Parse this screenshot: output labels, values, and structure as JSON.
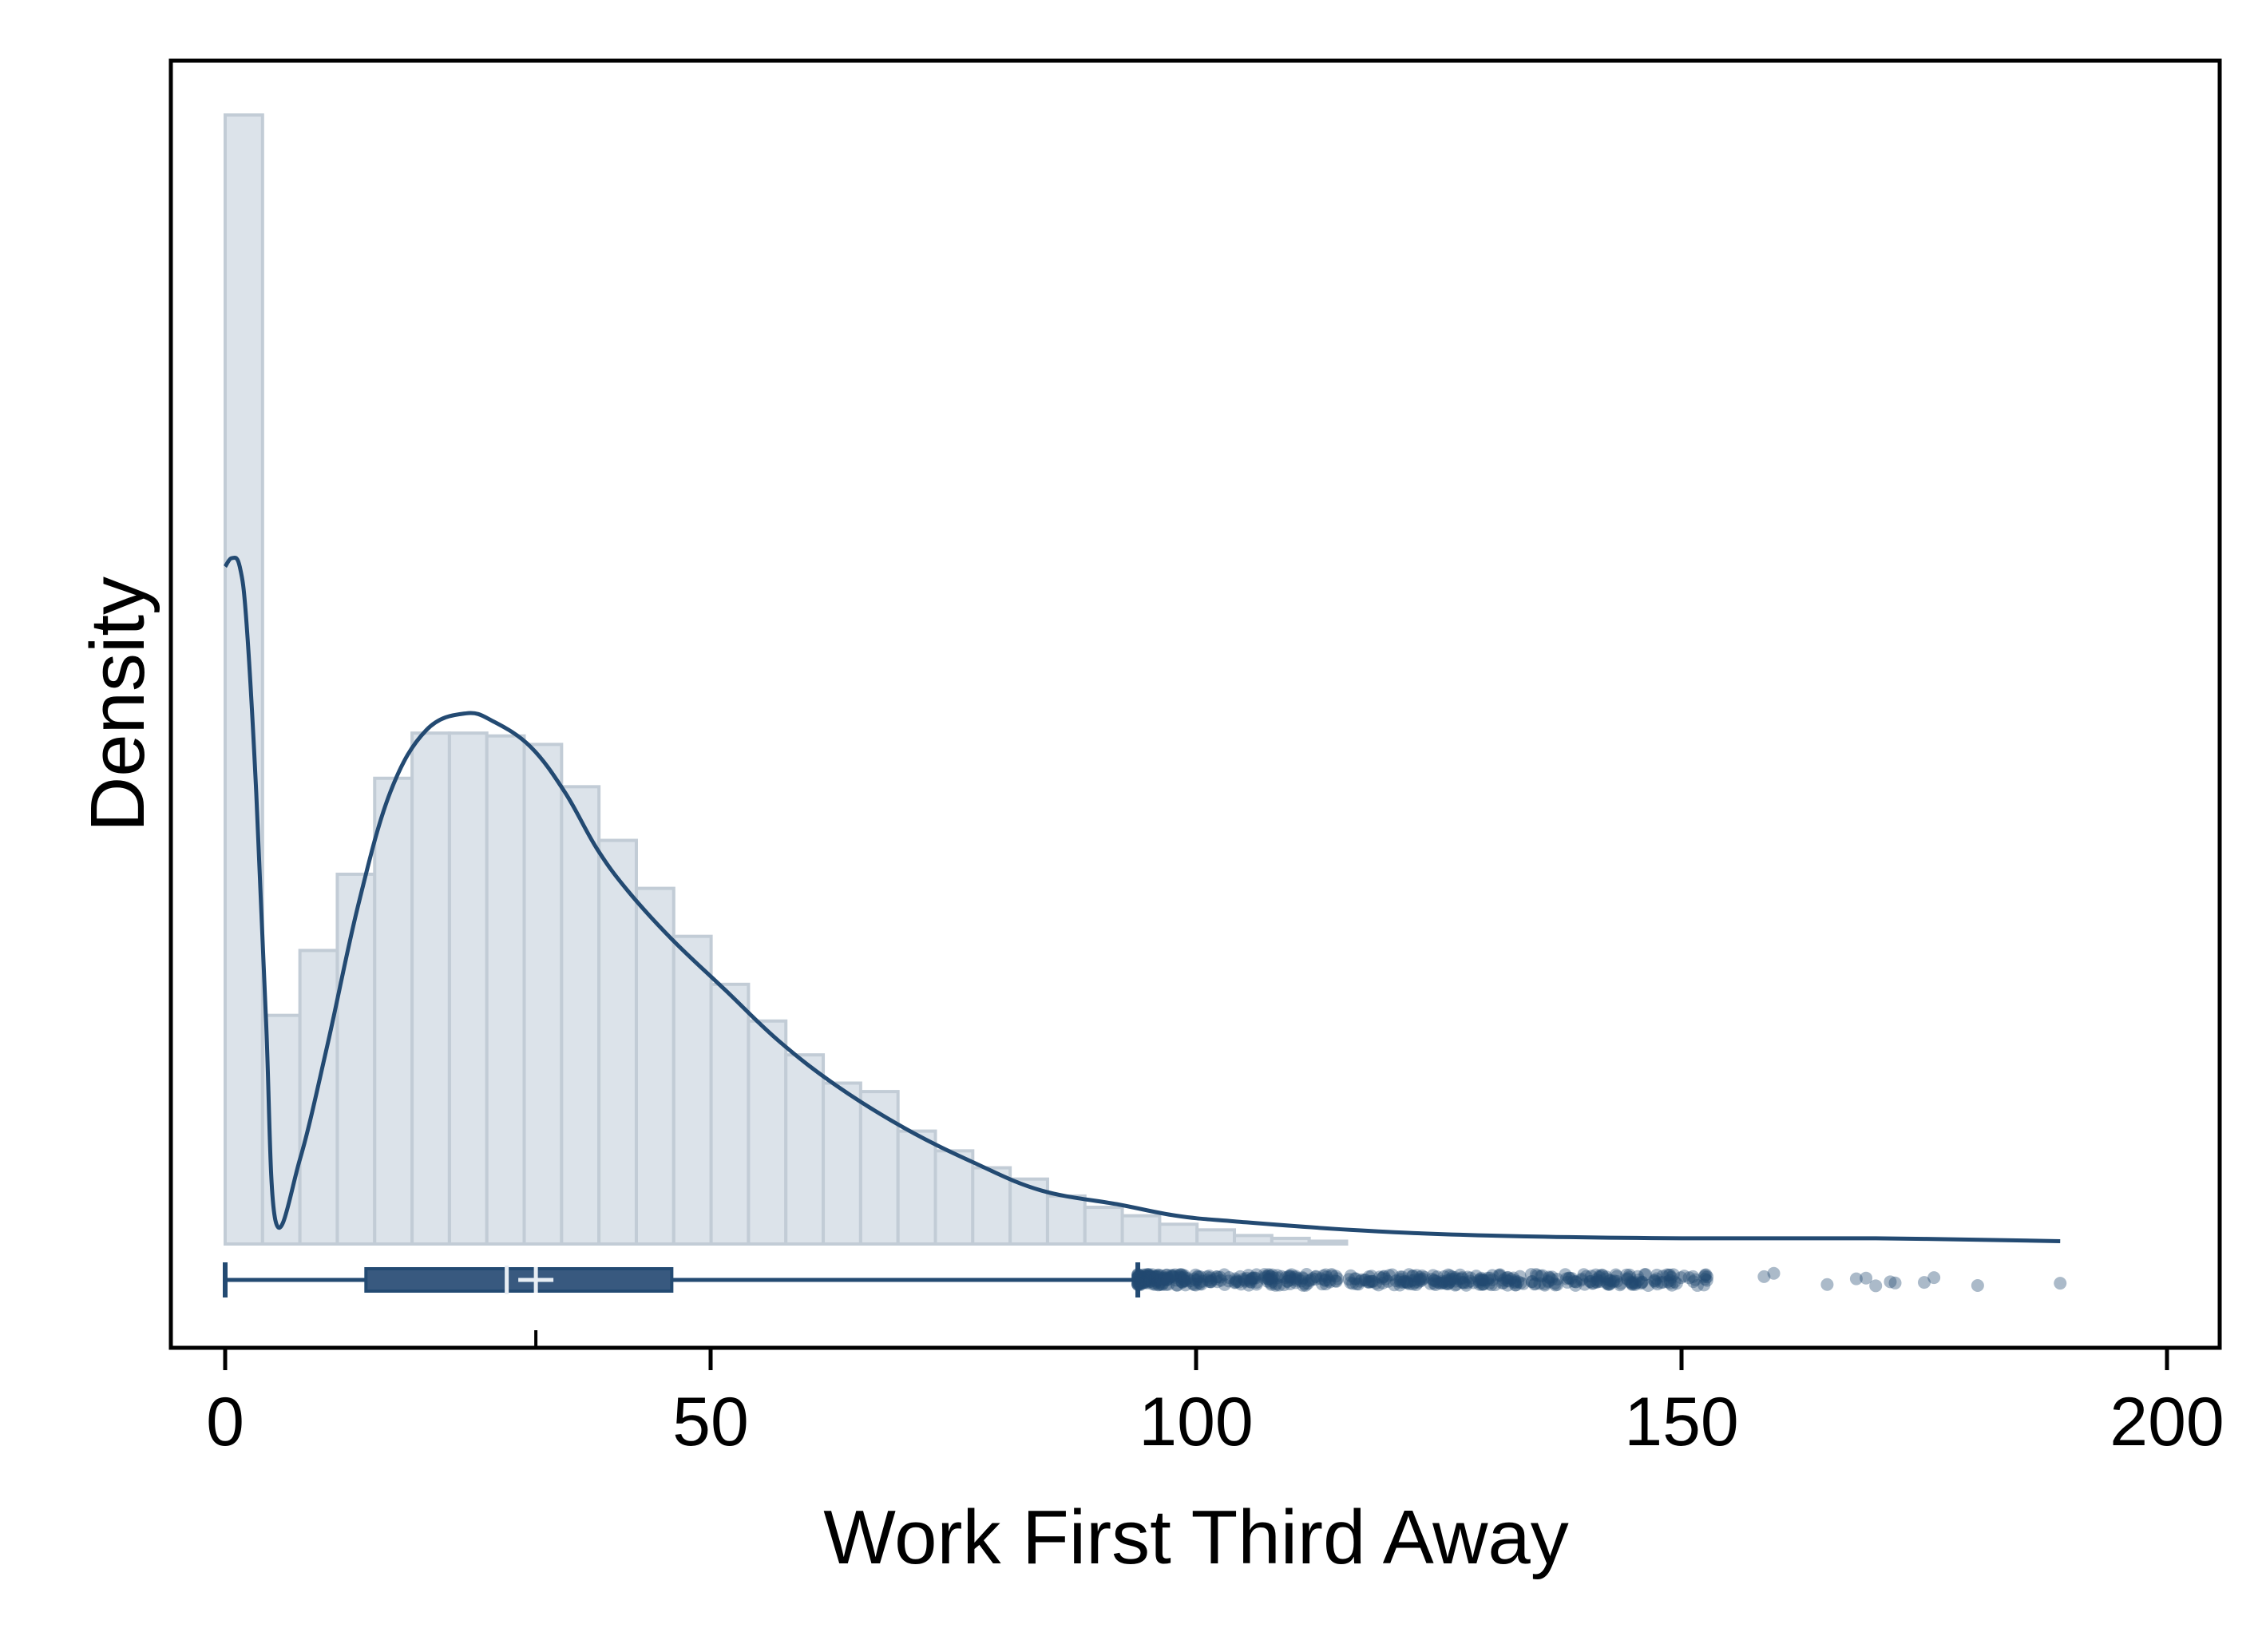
{
  "chart_data": {
    "type": "histogram",
    "xlabel": "Work First Third Away",
    "ylabel": "Density",
    "xlim": [
      -5,
      206
    ],
    "x_ticks": [
      "0",
      "50",
      "100",
      "150",
      "200"
    ],
    "x_tick_values": [
      0,
      50,
      100,
      150,
      200
    ],
    "y_tick_labels_shown": false,
    "colors": {
      "bar_fill": "#dce3ea",
      "bar_edge": "#c2ccd6",
      "line": "#234a72",
      "box_fill": "#38597f",
      "median_mark": "#e8eef4",
      "frame": "#000000"
    },
    "histogram": {
      "bin_width": 3.85,
      "bin_start": 0,
      "densities": [
        0.04,
        0.0081,
        0.0104,
        0.0131,
        0.0165,
        0.0181,
        0.0181,
        0.018,
        0.0177,
        0.0162,
        0.0143,
        0.0126,
        0.0109,
        0.0092,
        0.0079,
        0.0067,
        0.0057,
        0.0054,
        0.004,
        0.0033,
        0.0027,
        0.0023,
        0.0017,
        0.0013,
        0.001,
        0.0007,
        0.0005,
        0.0003,
        0.0002,
        0.0001
      ]
    },
    "kde": {
      "x": [
        0,
        0.7,
        1.5,
        2.2,
        3.2,
        4.2,
        5.2,
        7.7,
        10.5,
        13.7,
        17,
        20.7,
        24.8,
        27.7,
        31.5,
        35,
        38.3,
        41.5,
        46,
        51.5,
        57,
        63,
        70,
        77,
        84,
        92,
        98,
        104,
        116,
        130,
        150,
        170,
        189
      ],
      "density": [
        0.024,
        0.0243,
        0.024,
        0.022,
        0.016,
        0.008,
        0.0008,
        0.003,
        0.007,
        0.012,
        0.016,
        0.0182,
        0.0188,
        0.0185,
        0.0176,
        0.016,
        0.014,
        0.0125,
        0.0108,
        0.009,
        0.0072,
        0.0056,
        0.0041,
        0.0029,
        0.0019,
        0.0014,
        0.001,
        0.0008,
        0.0005,
        0.0003,
        0.0002,
        0.0002,
        0.0001
      ]
    },
    "boxplot": {
      "min": 0,
      "q1": 14.5,
      "median": 29,
      "mean": 32,
      "q3": 46,
      "whisker_high": 94
    },
    "outliers_dense_range": [
      94,
      153
    ],
    "outliers_sparse": [
      158.5,
      159.5,
      165,
      168,
      169,
      170,
      171.5,
      172,
      175,
      176,
      180.5,
      189
    ]
  }
}
